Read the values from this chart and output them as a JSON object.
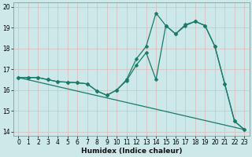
{
  "xlabel": "Humidex (Indice chaleur)",
  "bg_color": "#cce8e8",
  "grid_color_v": "#ddbaba",
  "grid_color_h": "#ddbaba",
  "line_color": "#1a7a6a",
  "xlim": [
    -0.5,
    23.5
  ],
  "ylim": [
    13.8,
    20.2
  ],
  "xticks": [
    0,
    1,
    2,
    3,
    4,
    5,
    6,
    7,
    8,
    9,
    10,
    11,
    12,
    13,
    14,
    15,
    16,
    17,
    18,
    19,
    20,
    21,
    22,
    23
  ],
  "yticks": [
    14,
    15,
    16,
    17,
    18,
    19,
    20
  ],
  "series1_x": [
    0,
    1,
    2,
    3,
    4,
    5,
    6,
    7,
    8,
    9,
    10,
    11,
    12,
    13,
    14,
    15,
    16,
    17,
    18,
    19,
    20,
    21,
    22,
    23
  ],
  "series1_y": [
    16.6,
    16.6,
    16.6,
    16.5,
    16.4,
    16.38,
    16.35,
    16.3,
    15.95,
    15.75,
    16.0,
    16.5,
    17.5,
    18.1,
    19.7,
    19.1,
    18.7,
    19.15,
    19.3,
    19.1,
    18.1,
    16.3,
    14.5,
    14.1
  ],
  "series2_x": [
    0,
    1,
    2,
    3,
    4,
    5,
    6,
    7,
    8,
    9,
    10,
    11,
    12,
    13,
    14,
    15,
    16,
    17,
    18,
    19,
    20,
    21,
    22,
    23
  ],
  "series2_y": [
    16.6,
    16.6,
    16.6,
    16.5,
    16.4,
    16.38,
    16.35,
    16.3,
    15.95,
    15.75,
    16.0,
    16.45,
    17.2,
    17.8,
    16.5,
    19.1,
    18.7,
    19.1,
    19.3,
    19.1,
    18.1,
    16.3,
    14.5,
    14.1
  ],
  "series3_x": [
    0,
    23
  ],
  "series3_y": [
    16.6,
    14.1
  ]
}
